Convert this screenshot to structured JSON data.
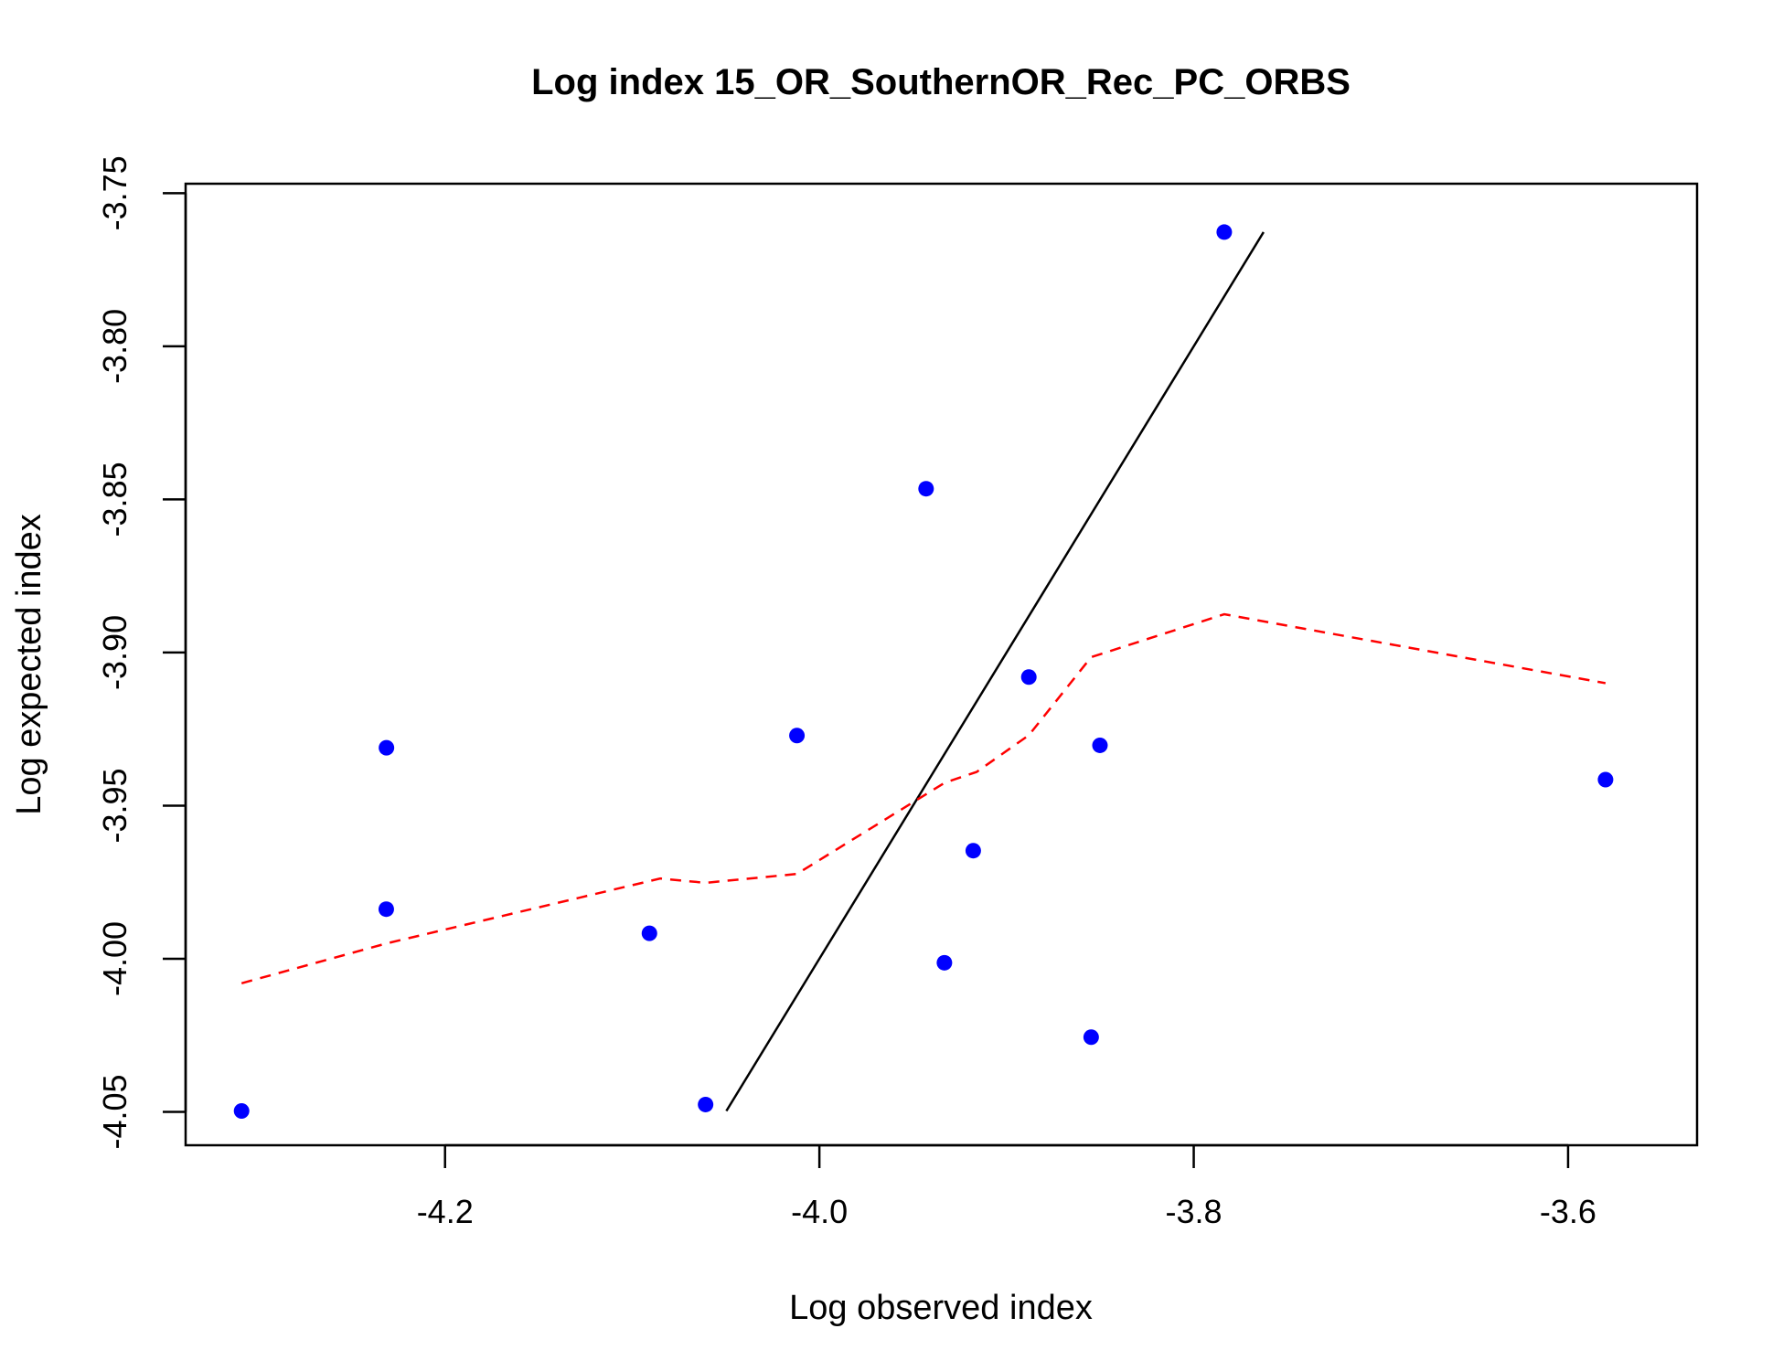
{
  "chart_data": {
    "type": "scatter",
    "title": "Log index 15_OR_SouthernOR_Rec_PC_ORBS",
    "xlabel": "Log observed index",
    "ylabel": "Log expected index",
    "xlim": [
      -4.3386,
      -3.5311
    ],
    "ylim": [
      -4.0609,
      -3.7469
    ],
    "x_ticks": [
      -4.2,
      -4.0,
      -3.8,
      -3.6
    ],
    "x_tick_labels": [
      "-4.2",
      "-4.0",
      "-3.8",
      "-3.6"
    ],
    "y_ticks": [
      -4.05,
      -4.0,
      -3.95,
      -3.9,
      -3.85,
      -3.8,
      -3.75
    ],
    "y_tick_labels": [
      "-4.05",
      "-4.00",
      "-3.95",
      "-3.90",
      "-3.85",
      "-3.80",
      "-3.75"
    ],
    "points": {
      "color": "#0000ff",
      "x": [
        -4.3087,
        -4.2313,
        -4.2314,
        -4.0908,
        -4.0608,
        -4.012,
        -3.943,
        -3.9332,
        -3.9178,
        -3.8881,
        -3.8548,
        -3.8501,
        -3.7837,
        -3.58
      ],
      "y": [
        -4.0497,
        -3.9311,
        -3.9838,
        -3.9917,
        -4.0476,
        -3.9271,
        -3.8465,
        -4.0013,
        -3.9647,
        -3.908,
        -4.0256,
        -3.9303,
        -3.7627,
        -3.9415
      ]
    },
    "identity_line": {
      "color": "#000000",
      "x": [
        -4.0497,
        -3.7627
      ],
      "y": [
        -4.0497,
        -3.7627
      ]
    },
    "smoother": {
      "color": "#ff0000",
      "style": "dashed",
      "x": [
        -4.3087,
        -4.2313,
        -4.085,
        -4.0608,
        -4.012,
        -3.933,
        -3.916,
        -3.8881,
        -3.8548,
        -3.7837,
        -3.58
      ],
      "y": [
        -4.008,
        -3.995,
        -3.9738,
        -3.9752,
        -3.9723,
        -3.9425,
        -3.939,
        -3.927,
        -3.9015,
        -3.8875,
        -3.91
      ]
    }
  }
}
